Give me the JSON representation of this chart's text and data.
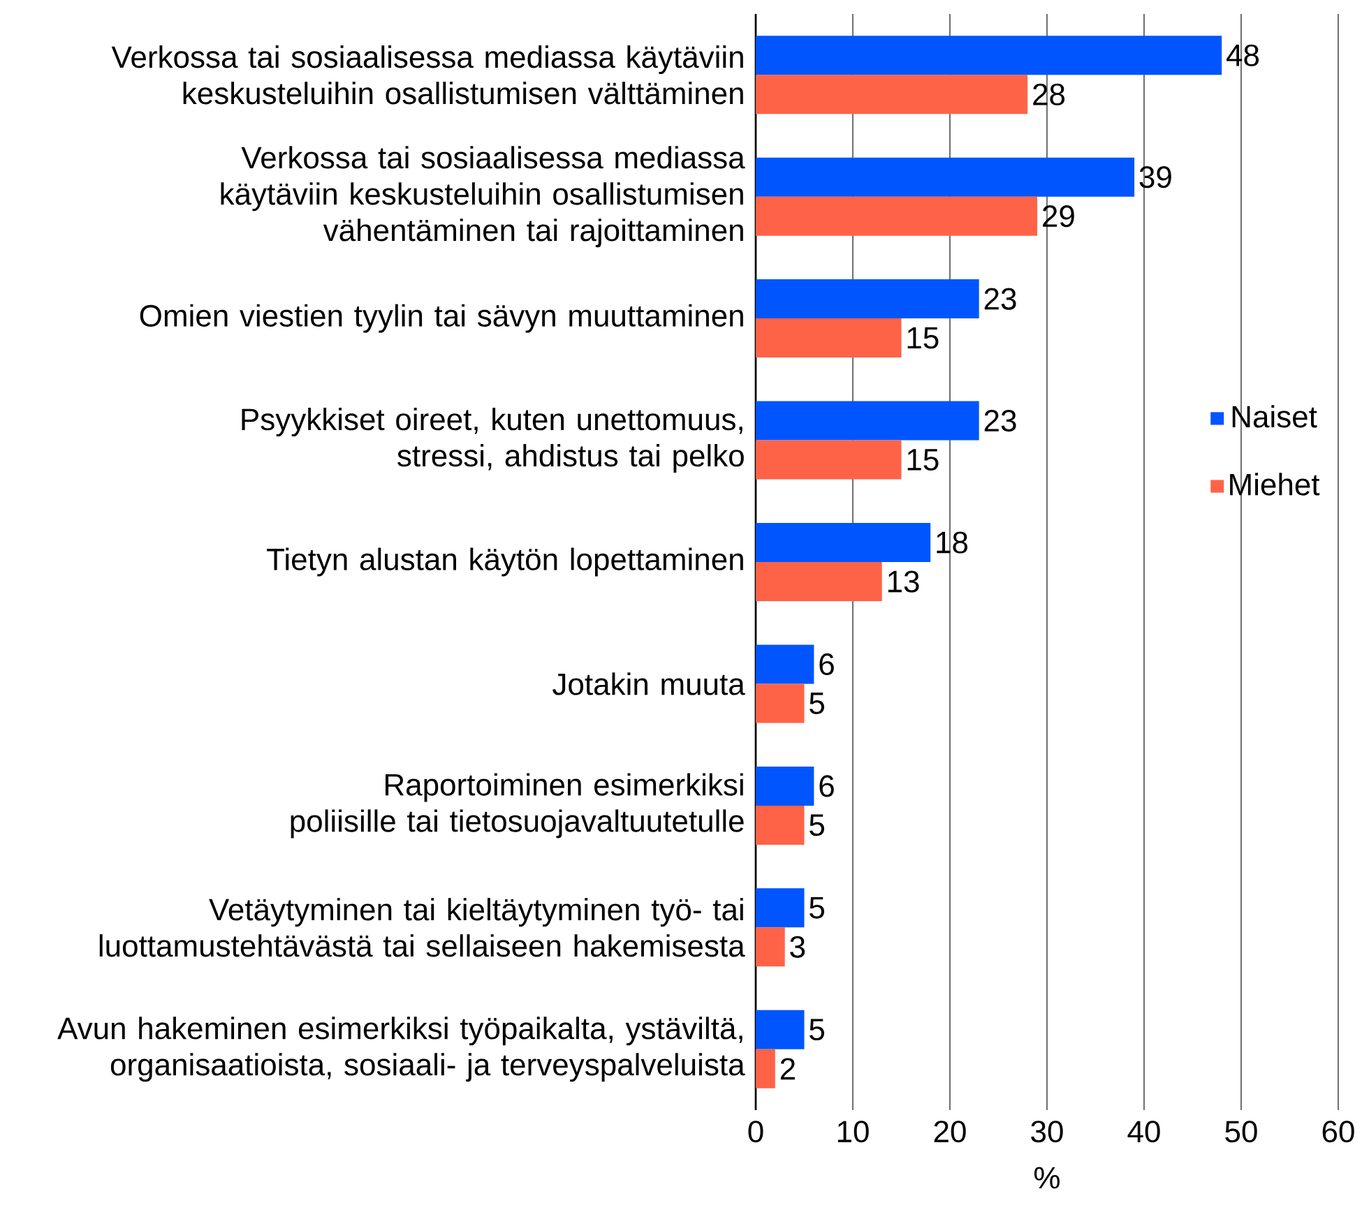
{
  "chart_data": {
    "type": "bar",
    "orientation": "horizontal",
    "xlabel": "%",
    "categories": [
      "Verkossa tai sosiaalisessa mediassa käytäviin keskusteluihin osallistumisen välttäminen",
      "Verkossa tai sosiaalisessa mediassa käytäviin keskusteluihin osallistumisen vähentäminen tai rajoittaminen",
      "Omien viestien tyylin tai sävyn muuttaminen",
      "Psyykkiset oireet, kuten unettomuus, stressi, ahdistus tai pelko",
      "Tietyn alustan käytön lopettaminen",
      "Jotakin muuta",
      "Raportoiminen esimerkiksi poliisille tai tietosuojavaltuutetulle",
      "Vetäytyminen tai kieltäytyminen työ- tai luottamustehtävästä tai sellaiseen hakemisesta",
      "Avun hakeminen esimerkiksi työpaikalta, ystäviltä, organisaatioista, sosiaali- ja terveyspalveluista"
    ],
    "series": [
      {
        "name": "Naiset",
        "color": "#0055ff",
        "values": [
          48,
          39,
          23,
          23,
          18,
          6,
          6,
          5,
          5
        ]
      },
      {
        "name": "Miehet",
        "color": "#ff6347",
        "values": [
          28,
          29,
          15,
          15,
          13,
          5,
          5,
          3,
          2
        ]
      }
    ],
    "xlim": [
      0,
      60
    ],
    "xticks": [
      0,
      10,
      20,
      30,
      40,
      50,
      60
    ],
    "grid": "x",
    "legend": "right",
    "data_labels": true
  }
}
